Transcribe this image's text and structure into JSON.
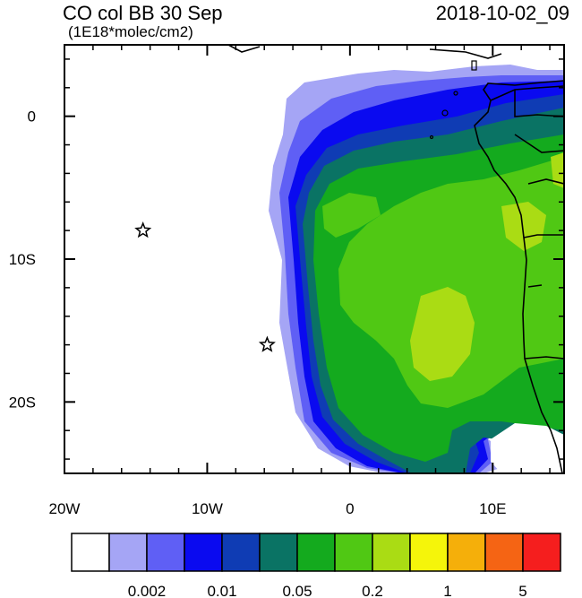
{
  "header": {
    "title": "CO col BB 30 Sep",
    "units": "(1E18*molec/cm2)",
    "timestamp": "2018-10-02_09"
  },
  "axes": {
    "x_ticks": [
      {
        "label": "20W",
        "lon": -20
      },
      {
        "label": "10W",
        "lon": -10
      },
      {
        "label": "0",
        "lon": 0
      },
      {
        "label": "10E",
        "lon": 10
      }
    ],
    "y_ticks": [
      {
        "label": "0",
        "lat": 0
      },
      {
        "label": "10S",
        "lat": -10
      },
      {
        "label": "20S",
        "lat": -20
      }
    ],
    "lon_range": [
      -20,
      15
    ],
    "lat_range": [
      -25,
      5
    ]
  },
  "markers": [
    {
      "name": "star-marker-1",
      "lon": -14.5,
      "lat": -8
    },
    {
      "name": "star-marker-2",
      "lon": -5.8,
      "lat": -16
    }
  ],
  "colorbar": {
    "colors": [
      "#ffffff",
      "#a5a5f5",
      "#5f5ff5",
      "#0a0af0",
      "#0f3cb4",
      "#0a7364",
      "#14aa1e",
      "#50c814",
      "#aadc14",
      "#f5f50a",
      "#f5af0a",
      "#f56414",
      "#f51e1e"
    ],
    "labels": [
      {
        "text": "0.002",
        "after_box": 2
      },
      {
        "text": "0.01",
        "after_box": 4
      },
      {
        "text": "0.05",
        "after_box": 6
      },
      {
        "text": "0.2",
        "after_box": 8
      },
      {
        "text": "1",
        "after_box": 10
      },
      {
        "text": "5",
        "after_box": 12
      }
    ]
  }
}
